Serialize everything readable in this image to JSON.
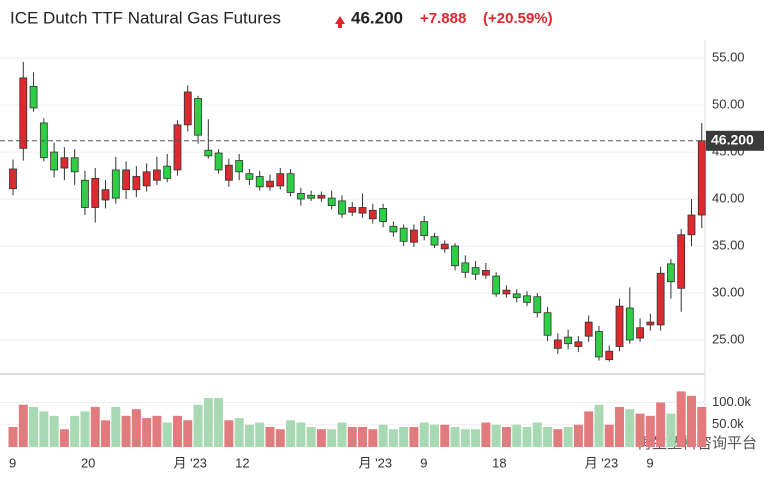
{
  "header": {
    "title": "ICE Dutch TTF Natural Gas Futures",
    "price": "46.200",
    "change": "+7.888",
    "change_pct": "(+20.59%)"
  },
  "watermark": "再生塑料咨询平台",
  "chart_data": {
    "type": "candlestick",
    "categories": [
      "9",
      null,
      null,
      null,
      null,
      null,
      null,
      "20",
      null,
      null,
      null,
      null,
      null,
      null,
      null,
      null,
      "月 '23",
      null,
      null,
      null,
      null,
      null,
      "12",
      null,
      null,
      null,
      null,
      null,
      null,
      null,
      null,
      null,
      null,
      null,
      "月 '23",
      null,
      null,
      null,
      null,
      null,
      "9",
      null,
      null,
      null,
      null,
      null,
      null,
      "18",
      null,
      null,
      null,
      null,
      null,
      null,
      null,
      null,
      "月 '23",
      null,
      null,
      null,
      null,
      null,
      "9",
      null,
      null,
      null,
      null,
      null
    ],
    "open": [
      41.1,
      45.4,
      52.0,
      48.1,
      45.0,
      43.3,
      44.4,
      42.0,
      39.1,
      39.9,
      43.1,
      41.0,
      41.0,
      41.4,
      42.0,
      43.5,
      43.1,
      47.9,
      50.7,
      45.2,
      44.9,
      42.0,
      44.1,
      42.7,
      42.4,
      41.3,
      41.4,
      42.7,
      40.6,
      40.4,
      40.1,
      40.1,
      39.8,
      38.6,
      38.5,
      37.9,
      39.0,
      37.1,
      36.9,
      35.4,
      37.6,
      36.0,
      34.7,
      35.0,
      33.2,
      32.7,
      31.9,
      31.8,
      29.9,
      29.9,
      29.7,
      29.6,
      27.9,
      24.1,
      25.3,
      24.3,
      25.4,
      25.9,
      22.9,
      24.3,
      28.4,
      25.2,
      26.6,
      26.6,
      33.1,
      30.5,
      36.2,
      38.3
    ],
    "high": [
      44.2,
      54.6,
      53.5,
      48.6,
      46.0,
      45.5,
      45.3,
      43.0,
      43.3,
      42.0,
      44.5,
      44.0,
      43.5,
      43.8,
      44.5,
      44.8,
      48.4,
      52.1,
      51.0,
      48.5,
      45.3,
      44.3,
      44.8,
      43.2,
      43.0,
      42.6,
      43.3,
      43.2,
      41.2,
      40.9,
      40.8,
      40.9,
      40.4,
      39.7,
      40.6,
      39.5,
      39.5,
      37.6,
      37.3,
      37.3,
      38.2,
      36.4,
      35.6,
      35.3,
      34.0,
      33.4,
      33.2,
      32.2,
      30.8,
      30.4,
      30.2,
      30.0,
      28.5,
      25.7,
      26.1,
      25.4,
      27.6,
      26.5,
      24.4,
      29.4,
      30.6,
      27.3,
      27.8,
      32.8,
      33.6,
      36.8,
      40.0,
      48.1
    ],
    "low": [
      40.4,
      44.1,
      49.3,
      44.0,
      42.3,
      42.0,
      41.5,
      38.3,
      37.5,
      39.0,
      39.5,
      40.0,
      40.2,
      40.8,
      41.5,
      41.8,
      42.5,
      47.2,
      45.9,
      44.3,
      42.7,
      41.3,
      42.0,
      41.5,
      40.9,
      40.9,
      41.0,
      40.3,
      39.3,
      39.8,
      39.7,
      38.9,
      38.0,
      38.2,
      38.0,
      37.4,
      37.0,
      36.0,
      35.0,
      34.9,
      35.6,
      34.8,
      34.3,
      32.4,
      31.6,
      31.4,
      31.5,
      29.6,
      29.5,
      29.0,
      28.6,
      27.4,
      24.9,
      23.5,
      24.0,
      23.7,
      24.8,
      22.8,
      22.7,
      23.8,
      24.6,
      24.8,
      26.0,
      26.0,
      29.4,
      28.0,
      35.0,
      36.9
    ],
    "close": [
      43.2,
      52.9,
      49.7,
      44.4,
      43.1,
      44.4,
      42.9,
      39.1,
      42.2,
      41.0,
      40.1,
      43.1,
      42.4,
      42.9,
      43.1,
      42.2,
      47.9,
      51.4,
      46.8,
      44.6,
      43.1,
      43.6,
      42.9,
      42.1,
      41.3,
      41.9,
      42.7,
      40.7,
      40.0,
      40.1,
      40.4,
      39.3,
      38.4,
      39.1,
      39.1,
      38.8,
      37.6,
      36.5,
      35.5,
      36.7,
      36.1,
      35.1,
      35.2,
      32.9,
      32.2,
      32.0,
      32.4,
      29.9,
      30.3,
      29.5,
      29.0,
      27.9,
      25.5,
      25.0,
      24.6,
      24.8,
      26.9,
      23.2,
      23.8,
      28.6,
      25.0,
      26.3,
      26.9,
      32.1,
      31.2,
      36.2,
      38.3,
      46.2
    ],
    "volume": [
      45000,
      95000,
      90000,
      80000,
      70000,
      40000,
      70000,
      80000,
      90000,
      60000,
      90000,
      70000,
      85000,
      65000,
      70000,
      55000,
      70000,
      60000,
      95000,
      110000,
      110000,
      60000,
      65000,
      50000,
      55000,
      45000,
      40000,
      60000,
      55000,
      45000,
      40000,
      40000,
      55000,
      45000,
      45000,
      40000,
      50000,
      40000,
      45000,
      45000,
      55000,
      50000,
      50000,
      45000,
      40000,
      40000,
      55000,
      50000,
      45000,
      50000,
      45000,
      55000,
      45000,
      40000,
      45000,
      50000,
      80000,
      95000,
      50000,
      90000,
      85000,
      75000,
      70000,
      100000,
      75000,
      125000,
      115000,
      90000
    ],
    "up_color": "#dc2a2f",
    "down_color": "#2fcf45",
    "up_volume_color": "#e27b7d",
    "down_volume_color": "#a9d9b3",
    "ylim": [
      21.8,
      56.4
    ],
    "yticks": [
      {
        "value": 25,
        "label": "25.00"
      },
      {
        "value": 30,
        "label": "30.00"
      },
      {
        "value": 35,
        "label": "35.00"
      },
      {
        "value": 40,
        "label": "40.00"
      },
      {
        "value": 45,
        "label": "45.00"
      },
      {
        "value": 50,
        "label": "50.00"
      },
      {
        "value": 55,
        "label": "55.00"
      }
    ],
    "volume_ylim": [
      0,
      155000
    ],
    "volume_ticks": [
      {
        "value": 50000,
        "label": "50.0k"
      },
      {
        "value": 100000,
        "label": "100.0k"
      }
    ],
    "price_line": {
      "value": 46.2,
      "label": "46.200"
    },
    "grid": true
  }
}
